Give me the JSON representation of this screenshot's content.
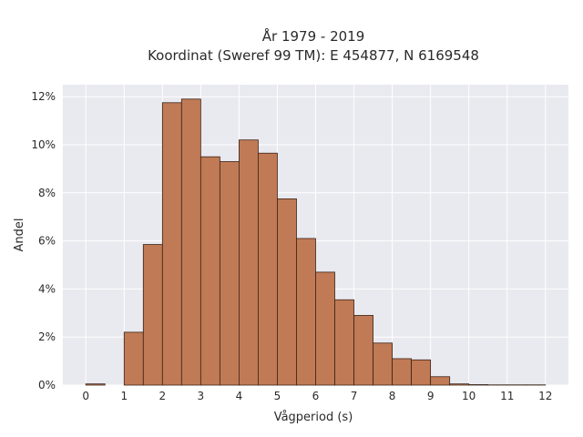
{
  "chart_data": {
    "type": "bar",
    "title_line1": "År 1979 - 2019",
    "title_line2": "Koordinat (Sweref 99 TM): E 454877, N 6169548",
    "xlabel": "Vågperiod (s)",
    "ylabel": "Andel",
    "xlim": [
      -0.6,
      12.6
    ],
    "ylim": [
      0,
      12.5
    ],
    "x_ticks": [
      "0",
      "1",
      "2",
      "3",
      "4",
      "5",
      "6",
      "7",
      "8",
      "9",
      "10",
      "11",
      "12"
    ],
    "y_ticks": [
      "0%",
      "2%",
      "4%",
      "6%",
      "8%",
      "10%",
      "12%"
    ],
    "bin_width": 0.5,
    "bin_starts": [
      0,
      0.5,
      1,
      1.5,
      2,
      2.5,
      3,
      3.5,
      4,
      4.5,
      5,
      5.5,
      6,
      6.5,
      7,
      7.5,
      8,
      8.5,
      9,
      9.5,
      10,
      10.5,
      11,
      11.5
    ],
    "values": [
      0.05,
      0,
      2.2,
      5.85,
      11.75,
      11.9,
      9.5,
      9.3,
      10.2,
      9.65,
      7.75,
      6.1,
      4.7,
      3.55,
      2.9,
      1.75,
      1.1,
      1.05,
      0.35,
      0.05,
      0.02,
      0.01,
      0.01,
      0.01
    ],
    "grid": true,
    "legend": "none",
    "colors": {
      "bar_fill": "#c07a55",
      "bar_edge": "#3b2418",
      "plot_bg": "#e9e9f0",
      "grid": "#ffffff"
    }
  }
}
